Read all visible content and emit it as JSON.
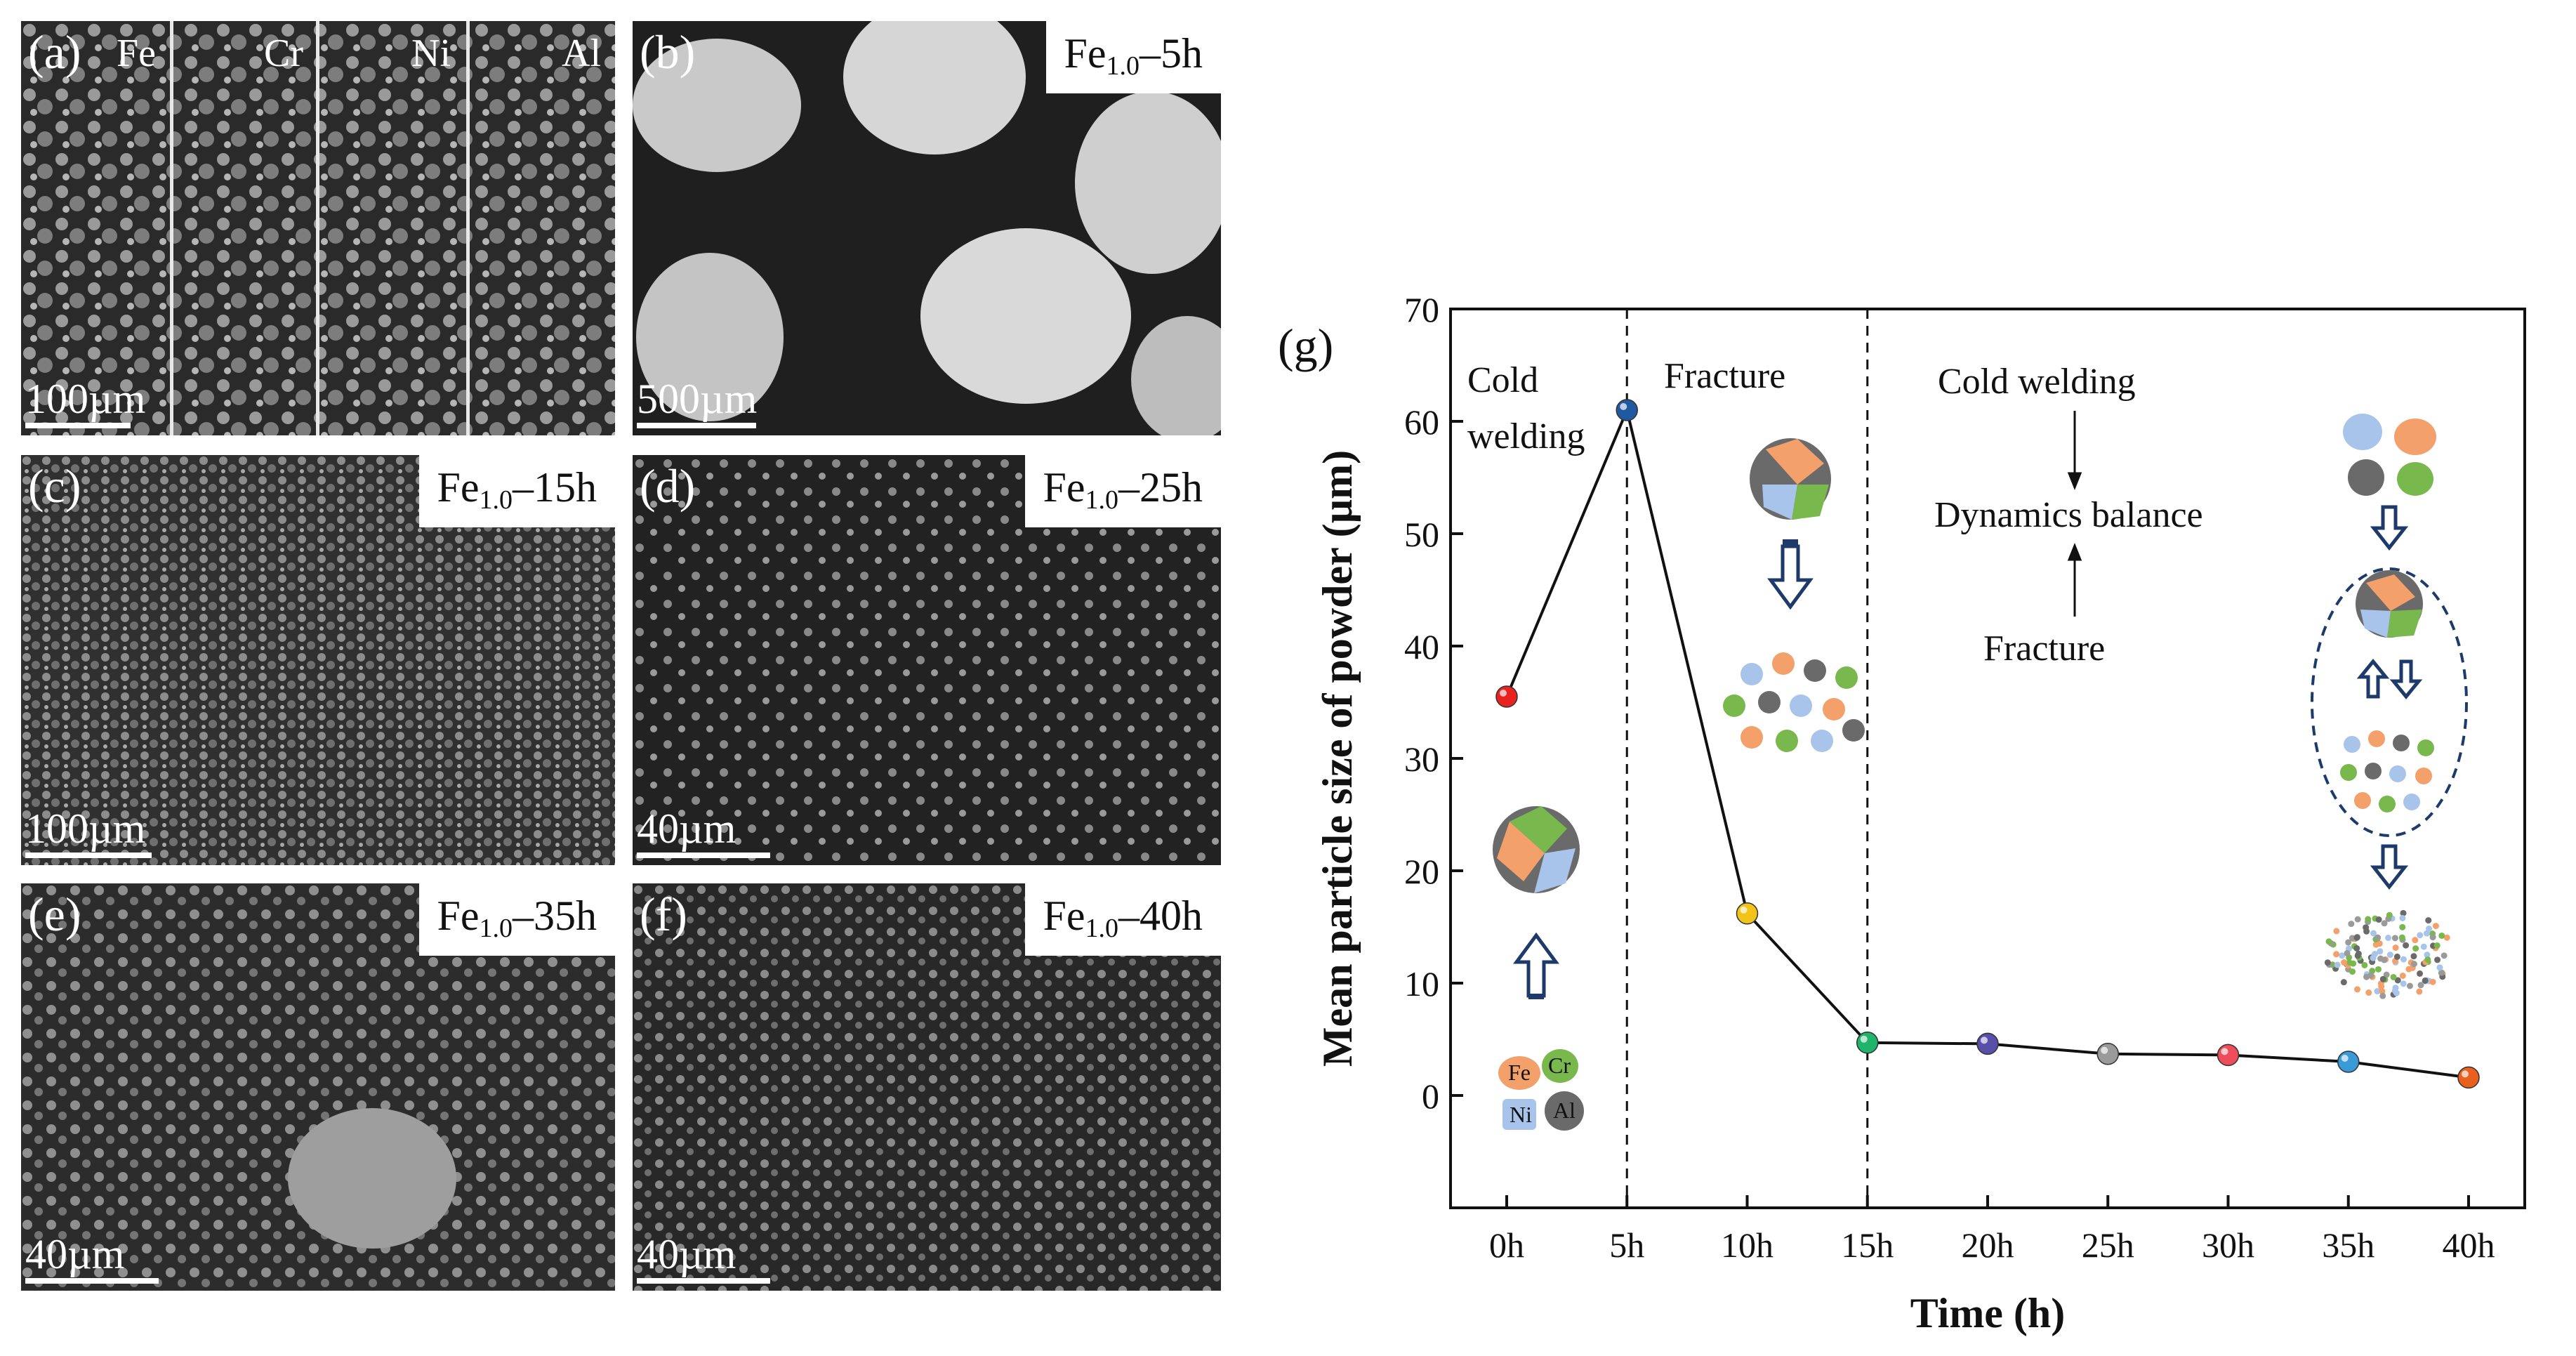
{
  "panels": {
    "a": {
      "label": "(a)",
      "elements": [
        "Fe",
        "Cr",
        "Ni",
        "Al"
      ],
      "scale": "100µm"
    },
    "b": {
      "label": "(b)",
      "tag_main": "Fe",
      "tag_sub": "1.0",
      "tag_rest": "–5h",
      "scale": "500µm"
    },
    "c": {
      "label": "(c)",
      "tag_main": "Fe",
      "tag_sub": "1.0",
      "tag_rest": "–15h",
      "scale": "100µm"
    },
    "d": {
      "label": "(d)",
      "tag_main": "Fe",
      "tag_sub": "1.0",
      "tag_rest": "–25h",
      "scale": "40µm"
    },
    "e": {
      "label": "(e)",
      "tag_main": "Fe",
      "tag_sub": "1.0",
      "tag_rest": "–35h",
      "scale": "40µm"
    },
    "f": {
      "label": "(f)",
      "tag_main": "Fe",
      "tag_sub": "1.0",
      "tag_rest": "–40h",
      "scale": "40µm"
    }
  },
  "chart_data": {
    "type": "line",
    "panel_label": "(g)",
    "xlabel": "Time (h)",
    "ylabel": "Mean particle size of powder (µm)",
    "categories": [
      "0h",
      "5h",
      "10h",
      "15h",
      "20h",
      "25h",
      "30h",
      "35h",
      "40h"
    ],
    "values": [
      35.5,
      61,
      16.2,
      4.7,
      4.6,
      3.7,
      3.6,
      3.0,
      1.6
    ],
    "point_colors": [
      "#e8231f",
      "#1f5aa0",
      "#f2c318",
      "#20b36a",
      "#5a4fa8",
      "#9a9a9a",
      "#ee4d5a",
      "#3a9ad8",
      "#e8601c"
    ],
    "ylim": [
      -10,
      70
    ],
    "yticks": [
      0,
      10,
      20,
      30,
      40,
      50,
      60,
      70
    ],
    "grid": false,
    "stage_dividers_at": [
      "5h",
      "15h"
    ],
    "annotations": {
      "cold_welding_1": "Cold",
      "cold_welding_2": "welding",
      "fracture": "Fracture",
      "right_cold_welding": "Cold welding",
      "right_balance": "Dynamics balance",
      "right_fracture": "Fracture",
      "particle_fe": "Fe",
      "particle_cr": "Cr",
      "particle_ni": "Ni",
      "particle_al": "Al"
    }
  }
}
